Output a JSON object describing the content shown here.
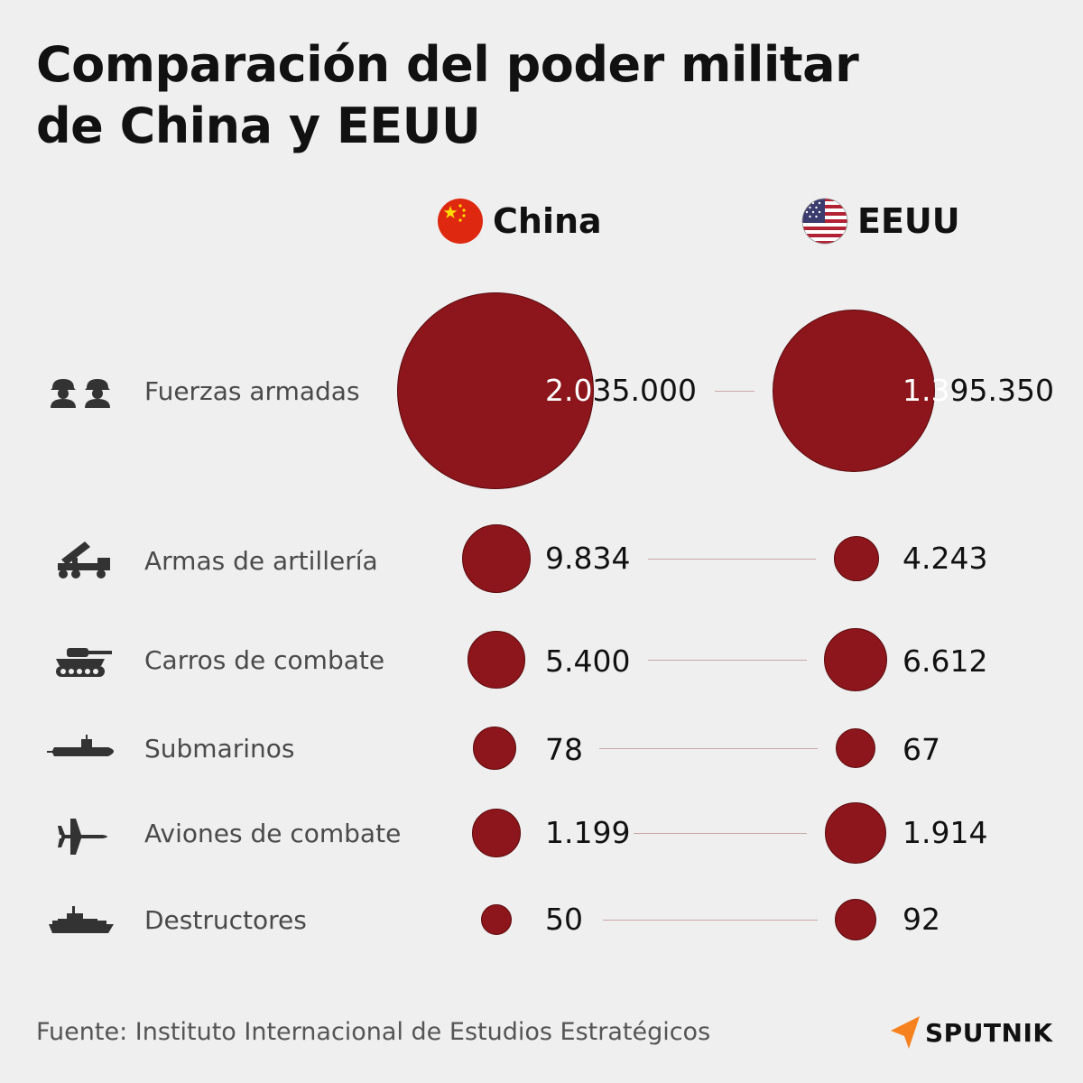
{
  "title_line1": "Comparación del poder militar",
  "title_line2": "de China y EEUU",
  "source": "Fuente: Instituto Internacional de Estudios Estratégicos",
  "brand": "SPUTNIK",
  "colors": {
    "bubble": "#8c161b",
    "accent": "#f5821f",
    "background": "#efefef"
  },
  "chart_data": {
    "type": "bubble",
    "series": [
      {
        "name": "China",
        "values": [
          2035000,
          9834,
          5400,
          78,
          1199,
          50
        ]
      },
      {
        "name": "EEUU",
        "values": [
          1395350,
          4243,
          6612,
          67,
          1914,
          92
        ]
      }
    ],
    "categories": [
      "Fuerzas armadas",
      "Armas de artillería",
      "Carros de combate",
      "Submarinos",
      "Aviones de combate",
      "Destructores"
    ],
    "value_labels": {
      "China": [
        "2.035.000",
        "9.834",
        "5.400",
        "78",
        "1.199",
        "50"
      ],
      "EEUU": [
        "1.395.350",
        "4.243",
        "6.612",
        "67",
        "1.914",
        "92"
      ]
    },
    "icons": [
      "soldiers-icon",
      "rocket-launcher-icon",
      "tank-icon",
      "submarine-icon",
      "fighter-jet-icon",
      "destroyer-ship-icon"
    ]
  }
}
